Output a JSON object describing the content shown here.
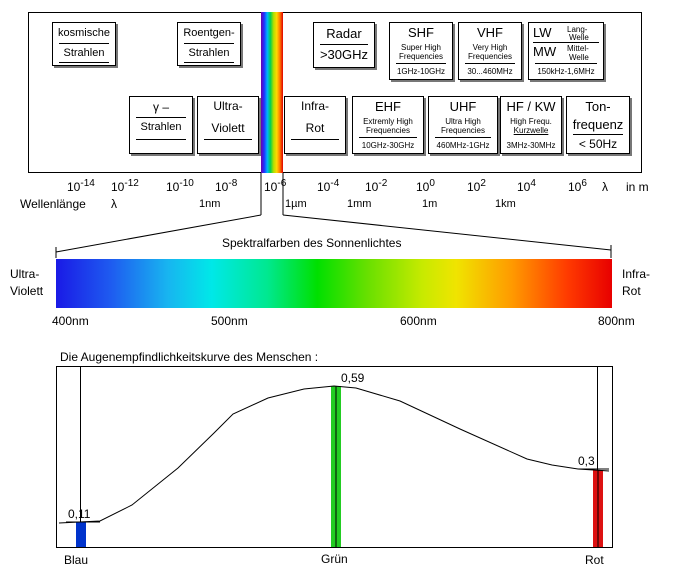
{
  "spectrum_boxes": {
    "kosmische": {
      "line1": "kosmische",
      "line2": "Strahlen"
    },
    "roentgen": {
      "line1": "Roentgen-",
      "line2": "Strahlen"
    },
    "radar": {
      "line1": "Radar",
      "line2": ">30GHz"
    },
    "shf": {
      "title": "SHF",
      "sub1": "Super High",
      "sub2": "Frequencies",
      "range": "1GHz-10GHz"
    },
    "vhf": {
      "title": "VHF",
      "sub1": "Very High",
      "sub2": "Frequencies",
      "range": "30...460MHz"
    },
    "lwmw": {
      "lw": "LW",
      "mw": "MW",
      "lang1": "Lang-",
      "lang2": "Welle",
      "mittel1": "Mittel-",
      "mittel2": "Welle",
      "range": "150kHz-1,6MHz"
    },
    "gamma": {
      "line1": "γ –",
      "line2": "Strahlen"
    },
    "ultraviolett": {
      "line1": "Ultra-",
      "line2": "Violett"
    },
    "infrarot": {
      "line1": "Infra-",
      "line2": "Rot"
    },
    "ehf": {
      "title": "EHF",
      "sub1": "Extremly High",
      "sub2": "Frequencies",
      "range": "10GHz-30GHz"
    },
    "uhf": {
      "title": "UHF",
      "sub1": "Ultra High",
      "sub2": "Frequencies",
      "range": "460MHz-1GHz"
    },
    "hfkw": {
      "title": "HF / KW",
      "sub1": "High Frequ.",
      "sub2": "Kurzwelle",
      "range": "3MHz-30MHz"
    },
    "tonfrequenz": {
      "line1": "Ton-",
      "line2": "frequenz",
      "range": "< 50Hz"
    }
  },
  "wavelength_scale": {
    "base": "10",
    "exponents": [
      "-14",
      "-12",
      "-10",
      "-8",
      "-6",
      "-4",
      "-2",
      "0",
      "2",
      "4",
      "6"
    ],
    "lambda": "λ",
    "unit": "in m",
    "label": "Wellenlänge",
    "label_lambda": "λ",
    "units_row": [
      "1nm",
      "1µm",
      "1mm",
      "1m",
      "1km"
    ]
  },
  "visible_spectrum": {
    "title": "Spektralfarben des Sonnenlichtes",
    "left_label1": "Ultra-",
    "left_label2": "Violett",
    "right_label1": "Infra-",
    "right_label2": "Rot",
    "ticks": [
      "400nm",
      "500nm",
      "600nm",
      "800nm"
    ]
  },
  "sensitivity": {
    "title": "Die Augenempfindlichkeitskurve des Menschen :",
    "values": {
      "blau": "0,11",
      "gruen": "0,59",
      "rot": "0,3"
    },
    "labels": {
      "blau": "Blau",
      "gruen": "Grün",
      "rot": "Rot"
    }
  },
  "colors": {
    "blue_bar": "#0033cc",
    "green_bar": "#22cc22",
    "red_bar": "#dd1111"
  }
}
